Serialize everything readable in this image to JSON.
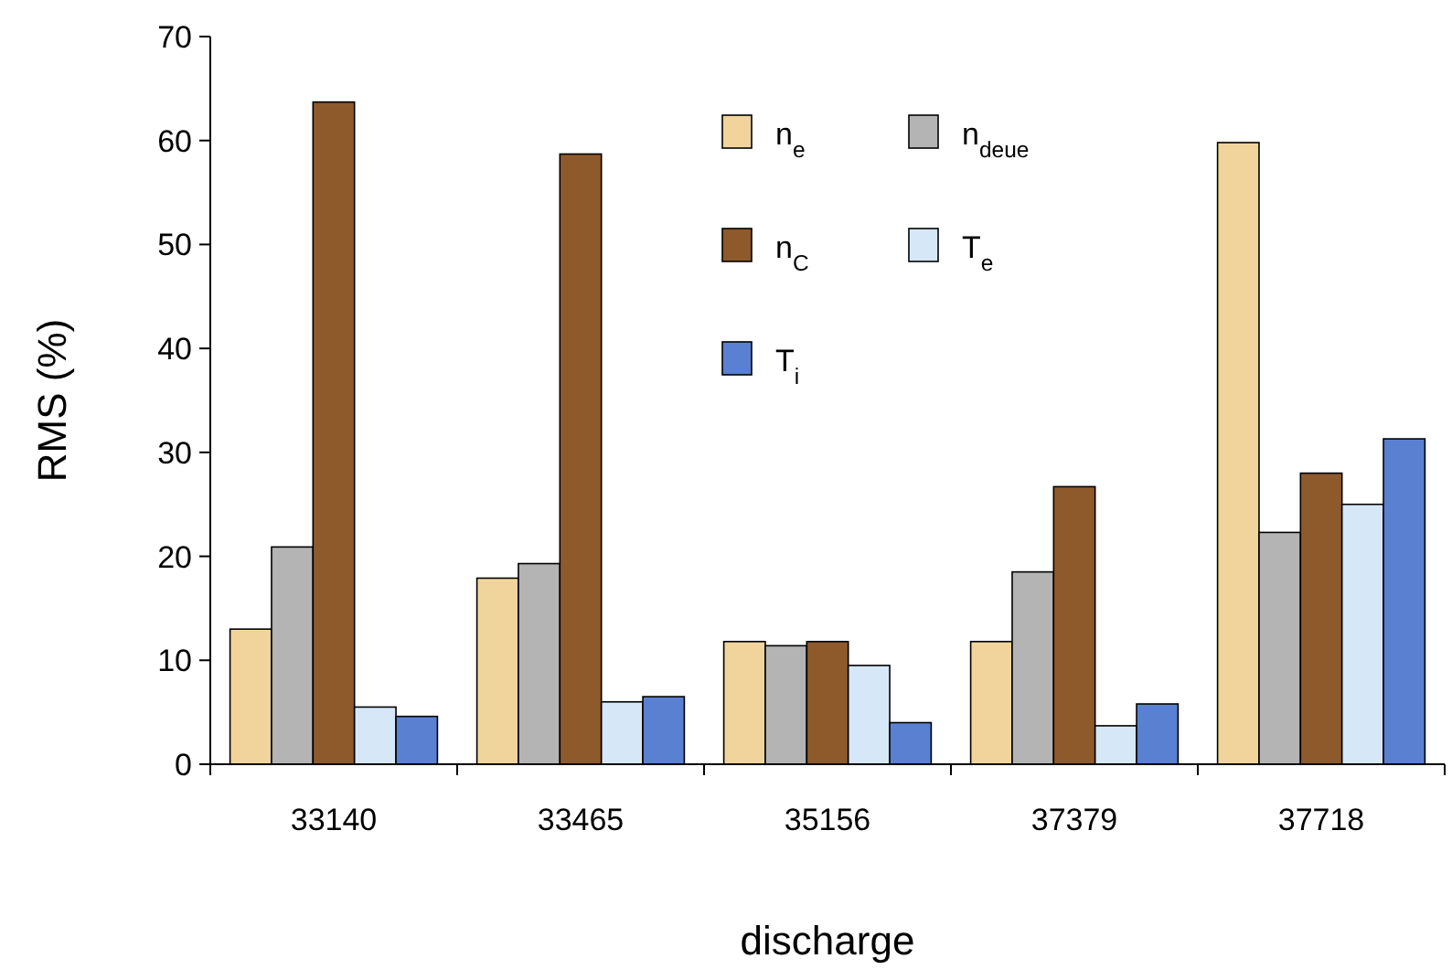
{
  "chart_data": {
    "type": "bar",
    "xlabel": "discharge",
    "ylabel": "RMS  (%)",
    "categories": [
      "33140",
      "33465",
      "35156",
      "37379",
      "37718"
    ],
    "series": [
      {
        "name": "n$_{e}$",
        "color": "#f0d49c",
        "values": [
          13.0,
          17.9,
          11.8,
          11.8,
          59.8
        ]
      },
      {
        "name": "n$_{deue}$",
        "color": "#b4b4b4",
        "values": [
          20.9,
          19.3,
          11.4,
          18.5,
          22.3
        ]
      },
      {
        "name": "n$_{C}$",
        "color": "#8e5a2c",
        "values": [
          63.7,
          58.7,
          11.8,
          26.7,
          28.0
        ]
      },
      {
        "name": "T$_{e}$",
        "color": "#d6e8f8",
        "values": [
          5.5,
          6.0,
          9.5,
          3.7,
          25.0
        ]
      },
      {
        "name": "T$_{i}$",
        "color": "#5a80d2",
        "values": [
          4.6,
          6.5,
          4.0,
          5.8,
          31.3
        ]
      }
    ],
    "ylim": [
      0,
      70
    ],
    "yticks": [
      0,
      10,
      20,
      30,
      40,
      50,
      60,
      70
    ],
    "grid": false,
    "legend": "top"
  }
}
